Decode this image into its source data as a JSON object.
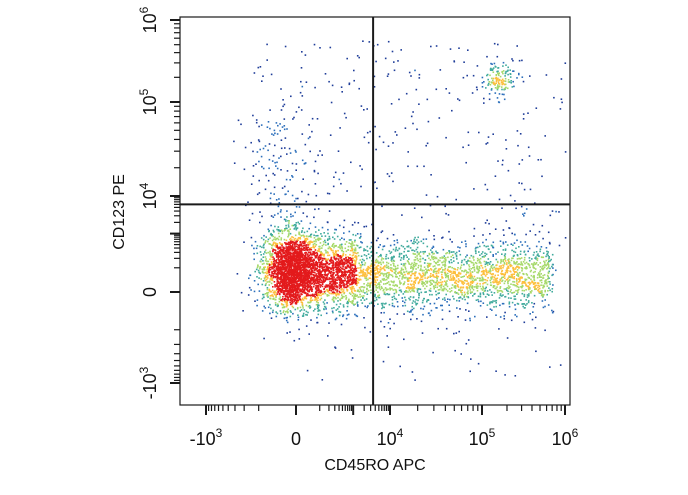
{
  "chart_data": {
    "type": "scatter",
    "title": "",
    "xlabel": "CD45RO APC",
    "ylabel": "CD123 PE",
    "xscale": "biexponential",
    "yscale": "biexponential",
    "x_ticks": [
      {
        "value": -1000,
        "base": "-10",
        "exp": "3"
      },
      {
        "value": 0,
        "base": "0",
        "exp": ""
      },
      {
        "value": 10000,
        "base": "10",
        "exp": "4"
      },
      {
        "value": 100000,
        "base": "10",
        "exp": "5"
      },
      {
        "value": 1000000,
        "base": "10",
        "exp": "6"
      }
    ],
    "y_ticks": [
      {
        "value": -1000,
        "base": "-10",
        "exp": "3"
      },
      {
        "value": 0,
        "base": "0",
        "exp": ""
      },
      {
        "value": 10000,
        "base": "10",
        "exp": "4"
      },
      {
        "value": 100000,
        "base": "10",
        "exp": "5"
      },
      {
        "value": 1000000,
        "base": "10",
        "exp": "6"
      }
    ],
    "gates": {
      "x": 3500,
      "y": 6000
    },
    "populations": [
      {
        "center": [
          300,
          800
        ],
        "density": "very high",
        "colormap": "red-yellow-green-blue"
      },
      {
        "x_range": [
          5000,
          700000
        ],
        "y": 800,
        "density": "medium",
        "colormap": "green-blue"
      },
      {
        "center": [
          200000,
          250000
        ],
        "density": "low",
        "colormap": "blue"
      }
    ],
    "grid": false,
    "legend": "none"
  },
  "colors": {
    "axis": "#1a1a1a",
    "gate_line": "#1a1a1a",
    "density_high": "#e31a1c",
    "density_mid_high": "#fdbf3c",
    "density_mid": "#a6d96a",
    "density_mid_low": "#41ab9d",
    "density_low": "#2c6fbb",
    "density_sparse": "#1f3d99"
  }
}
